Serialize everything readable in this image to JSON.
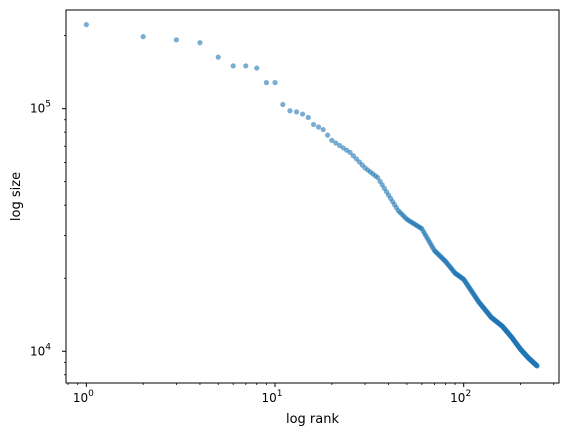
{
  "chart_data": {
    "type": "scatter",
    "title": "",
    "xlabel": "log rank",
    "ylabel": "log size",
    "xscale": "log",
    "yscale": "log",
    "xlim": [
      0.78,
      320
    ],
    "ylim": [
      7400,
      255000
    ],
    "grid": false,
    "marker_color": "#1f77b4",
    "marker_alpha": 0.6,
    "x_ticks": [
      {
        "value": 1,
        "base": "10",
        "exp": "0"
      },
      {
        "value": 10,
        "base": "10",
        "exp": "1"
      },
      {
        "value": 100,
        "base": "10",
        "exp": "2"
      }
    ],
    "y_ticks": [
      {
        "value": 10000,
        "base": "10",
        "exp": "4"
      },
      {
        "value": 100000,
        "base": "10",
        "exp": "5"
      }
    ],
    "anchors": [
      [
        1,
        222000
      ],
      [
        2,
        198000
      ],
      [
        3,
        192000
      ],
      [
        4,
        187000
      ],
      [
        5,
        163000
      ],
      [
        6,
        150000
      ],
      [
        7,
        150000
      ],
      [
        8,
        147000
      ],
      [
        9,
        128000
      ],
      [
        10,
        128000
      ],
      [
        11,
        104000
      ],
      [
        12,
        98000
      ],
      [
        13,
        97000
      ],
      [
        14,
        95000
      ],
      [
        15,
        92000
      ],
      [
        16,
        86000
      ],
      [
        17,
        84000
      ],
      [
        18,
        82000
      ],
      [
        20,
        74000
      ],
      [
        25,
        66000
      ],
      [
        30,
        57000
      ],
      [
        35,
        52000
      ],
      [
        40,
        44000
      ],
      [
        45,
        38000
      ],
      [
        50,
        35000
      ],
      [
        60,
        32000
      ],
      [
        70,
        26000
      ],
      [
        80,
        23500
      ],
      [
        90,
        21000
      ],
      [
        100,
        19800
      ],
      [
        120,
        16000
      ],
      [
        140,
        13800
      ],
      [
        160,
        12700
      ],
      [
        180,
        11400
      ],
      [
        200,
        10200
      ],
      [
        220,
        9400
      ],
      [
        245,
        8700
      ]
    ],
    "n_points": 245
  }
}
